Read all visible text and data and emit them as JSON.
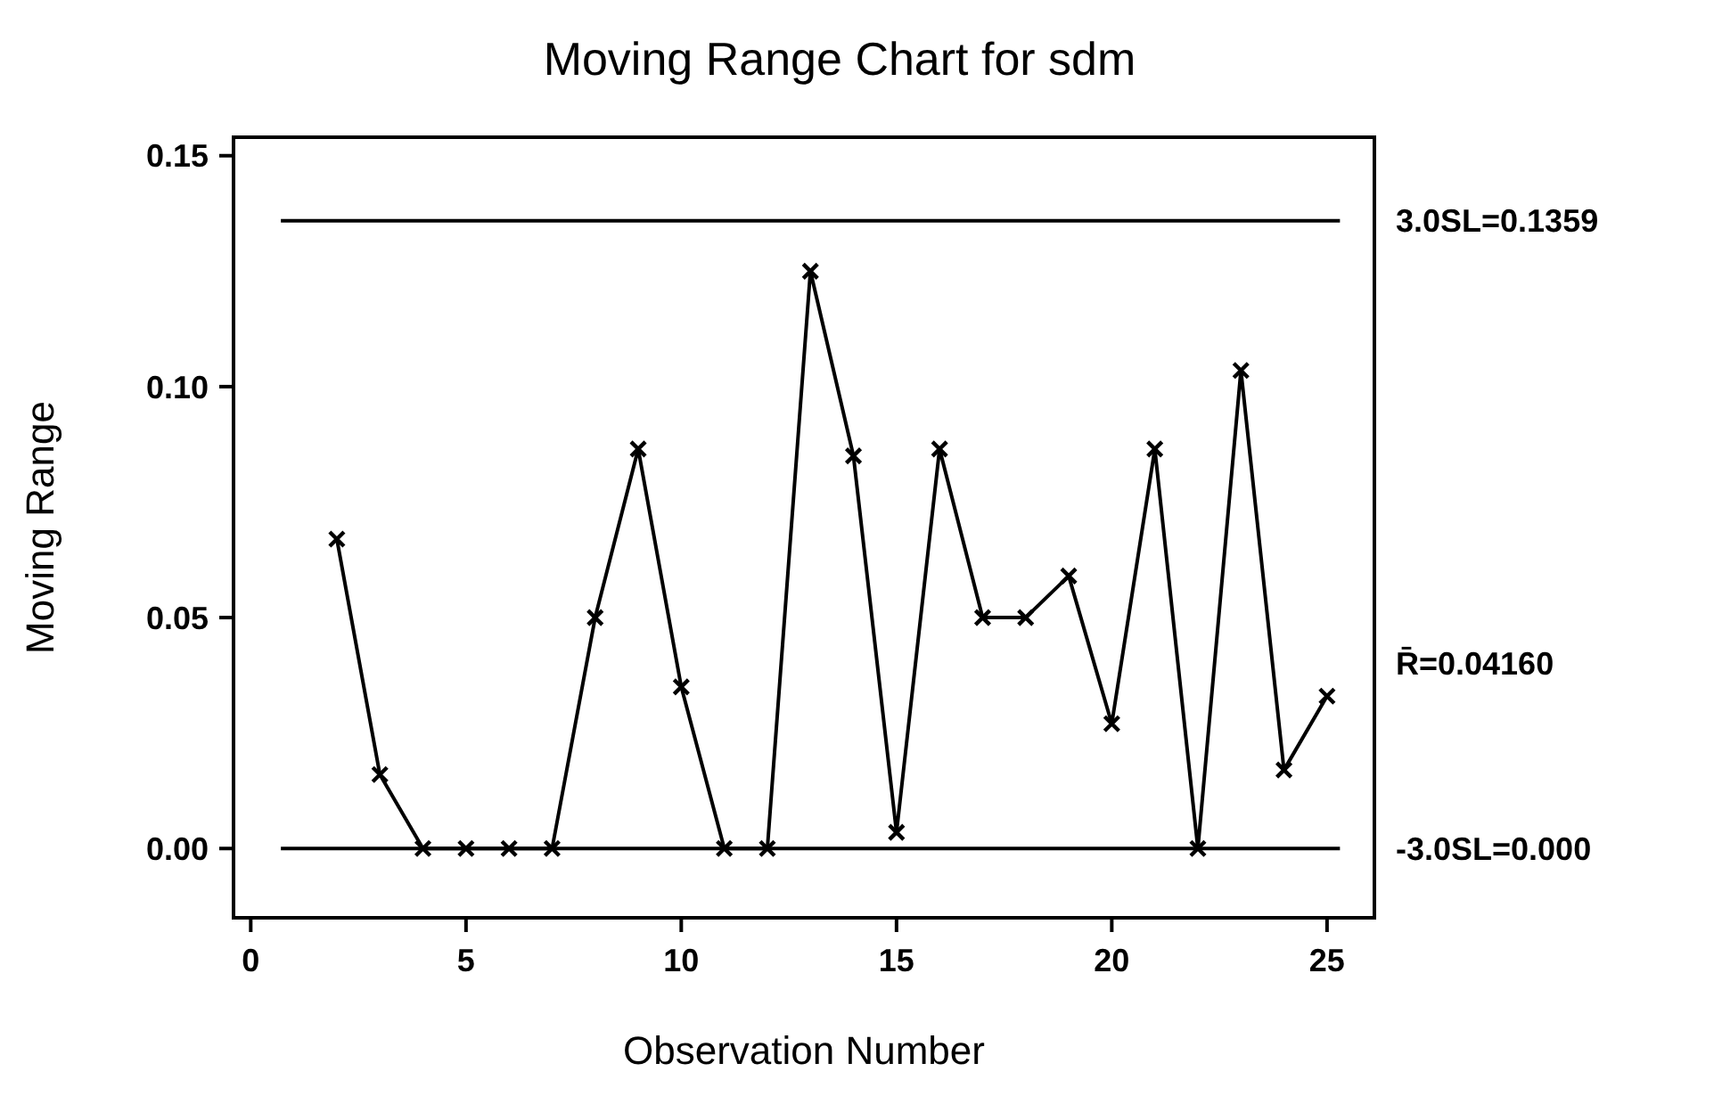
{
  "chart_data": {
    "type": "line",
    "title": "Moving Range Chart for sdm",
    "xlabel": "Observation Number",
    "ylabel": "Moving Range",
    "x": [
      2,
      3,
      4,
      5,
      6,
      7,
      8,
      9,
      10,
      11,
      12,
      13,
      14,
      15,
      16,
      17,
      18,
      19,
      20,
      21,
      22,
      23,
      24,
      25
    ],
    "series": [
      {
        "color": "#000000",
        "values": [
          0.067,
          0.016,
          0,
          0,
          0,
          0,
          0.05,
          0.0865,
          0.035,
          0,
          0,
          0.125,
          0.085,
          0.0035,
          0.0865,
          0.05,
          0.05,
          0.059,
          0.027,
          0.0865,
          0,
          0.1035,
          0.017,
          0.033
        ]
      }
    ],
    "xlim": [
      -0.4,
      26.1
    ],
    "xticks": [
      0,
      5,
      10,
      15,
      20,
      25
    ],
    "ylim": [
      -0.015,
      0.154
    ],
    "yticks": [
      {
        "value": 0,
        "label": "0.00"
      },
      {
        "value": 0.05,
        "label": "0.05"
      },
      {
        "value": 0.1,
        "label": "0.10"
      },
      {
        "value": 0.15,
        "label": "0.15"
      }
    ],
    "ref_lines": [
      {
        "axis": "y",
        "value": 0.1359,
        "label": "3.0SL=0.1359",
        "color": "#000000"
      },
      {
        "axis": "y",
        "value": 0,
        "label": "-3.0SL=0.000",
        "color": "#000000"
      }
    ],
    "annotations": [
      "R̄=0.04160"
    ],
    "marker": "cross",
    "line_style": "solid"
  }
}
